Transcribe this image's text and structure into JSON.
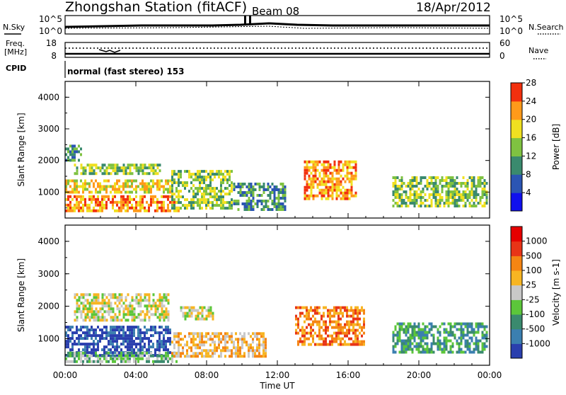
{
  "header": {
    "station": "Zhongshan Station (fitACF)",
    "beam": "Beam 08",
    "date": "18/Apr/2012"
  },
  "noise_panel": {
    "left_label": "N.Sky",
    "right_label": "N.Search",
    "ticks_left": [
      "10^5",
      "10^0"
    ],
    "ticks_right": [
      "10^5",
      "10^0"
    ]
  },
  "freq_panel": {
    "left_label": "Freq.",
    "unit": "[MHz]",
    "right_label": "Nave",
    "ticks_left": [
      "18",
      "8"
    ],
    "ticks_right": [
      "60",
      "0"
    ]
  },
  "cpid": {
    "label": "CPID",
    "value": "normal (fast stereo) 153"
  },
  "axes": {
    "x_title": "Time UT",
    "x_ticks": [
      "00:00",
      "04:00",
      "08:00",
      "12:00",
      "16:00",
      "20:00",
      "00:00"
    ],
    "y_title": "Slant Range [km]",
    "y_ticks": [
      "1000",
      "2000",
      "3000",
      "4000"
    ]
  },
  "chart_data": [
    {
      "type": "heatmap",
      "title": "",
      "xlabel": "Time UT",
      "ylabel": "Slant Range [km]",
      "xlim": [
        0,
        24
      ],
      "ylim": [
        180,
        4500
      ],
      "colorbar": {
        "label": "Power [dB]",
        "ticks": [
          "4",
          "8",
          "12",
          "16",
          "20",
          "24",
          "28"
        ],
        "colors": [
          "#1010ee",
          "#2b55b3",
          "#3a8a6e",
          "#7fc241",
          "#f0e020",
          "#ff9a1a",
          "#f2300e"
        ]
      },
      "regions": [
        {
          "t": [
            0.0,
            6.5
          ],
          "r": [
            300,
            900
          ],
          "level": 5
        },
        {
          "t": [
            0.0,
            6.0
          ],
          "r": [
            900,
            1400
          ],
          "level": 4
        },
        {
          "t": [
            0.5,
            5.5
          ],
          "r": [
            1500,
            1900
          ],
          "level": 3
        },
        {
          "t": [
            0.0,
            1.0
          ],
          "r": [
            1900,
            2500
          ],
          "level": 2
        },
        {
          "t": [
            6.0,
            9.5
          ],
          "r": [
            400,
            1700
          ],
          "level": 3
        },
        {
          "t": [
            9.5,
            12.5
          ],
          "r": [
            400,
            1300
          ],
          "level": 2
        },
        {
          "t": [
            13.5,
            16.5
          ],
          "r": [
            700,
            2000
          ],
          "level": 5
        },
        {
          "t": [
            18.5,
            24.0
          ],
          "r": [
            500,
            1500
          ],
          "level": 3
        }
      ]
    },
    {
      "type": "heatmap",
      "title": "",
      "xlabel": "Time UT",
      "ylabel": "Slant Range [km]",
      "xlim": [
        0,
        24
      ],
      "ylim": [
        180,
        4500
      ],
      "colorbar": {
        "label": "Velocity [m s-1]",
        "ticks": [
          "1000",
          "500",
          "100",
          "25",
          "-25",
          "-100",
          "-500",
          "-1000"
        ],
        "colors": [
          "#2a3fae",
          "#3b7fb0",
          "#3a8a6e",
          "#5cc63a",
          "#c8c8c8",
          "#f7b522",
          "#f58513",
          "#e83417",
          "#e60000"
        ]
      },
      "regions": [
        {
          "t": [
            0.0,
            6.0
          ],
          "r": [
            400,
            1400
          ],
          "level": 0
        },
        {
          "t": [
            0.0,
            6.5
          ],
          "r": [
            200,
            600
          ],
          "level": 3
        },
        {
          "t": [
            0.5,
            6.0
          ],
          "r": [
            1500,
            2400
          ],
          "level": 4
        },
        {
          "t": [
            6.0,
            11.5
          ],
          "r": [
            400,
            1200
          ],
          "level": 5
        },
        {
          "t": [
            6.5,
            8.5
          ],
          "r": [
            1500,
            2000
          ],
          "level": 4
        },
        {
          "t": [
            13.0,
            17.0
          ],
          "r": [
            700,
            2000
          ],
          "level": 6
        },
        {
          "t": [
            18.5,
            24.0
          ],
          "r": [
            500,
            1500
          ],
          "level": 2
        }
      ]
    }
  ]
}
